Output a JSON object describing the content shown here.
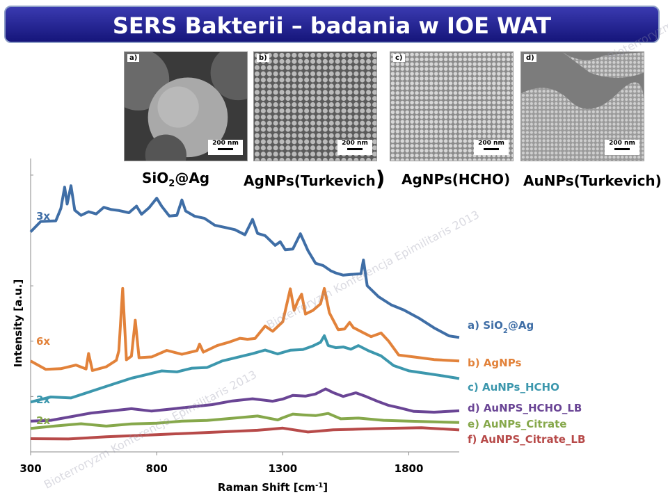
{
  "title": "SERS Bakterii – badania w IOE WAT",
  "watermark": "Bioterroryzm Konferencja Epimilitaris 2013",
  "micrographs": [
    {
      "letter": "a)",
      "scale": "200 nm",
      "label_main": "SiO",
      "label_sub": "2",
      "label_rest": "@Ag"
    },
    {
      "letter": "b)",
      "scale": "200 nm",
      "label_main": "AgNPs(Turkevich",
      "label_sub": "",
      "label_rest": ")"
    },
    {
      "letter": "c)",
      "scale": "200 nm",
      "label_main": "AgNPs(HCHO)",
      "label_sub": "",
      "label_rest": ""
    },
    {
      "letter": "d)",
      "scale": "200 nm",
      "label_main": "AuNPs(Turkevich)",
      "label_sub": "",
      "label_rest": ""
    }
  ],
  "chart_data": {
    "type": "line",
    "xlabel": "Raman Shift [cm",
    "xlabel_sup": "-1",
    "xlabel_end": "]",
    "ylabel": "Intensity [a.u.]",
    "xlim": [
      300,
      2000
    ],
    "ylim": [
      0,
      10
    ],
    "xticks": [
      300,
      800,
      1300,
      1800
    ],
    "xtick_labels": [
      "300",
      "800",
      "1300",
      "1800"
    ],
    "series": [
      {
        "name": "a) SiO",
        "name_sub": "2",
        "name_rest": "@Ag",
        "color": "#3f6ea6",
        "multiplier": "3x",
        "multiplier_color": "#3f6ea6",
        "points": [
          [
            300,
            7.5
          ],
          [
            340,
            7.9
          ],
          [
            400,
            7.9
          ],
          [
            420,
            8.3
          ],
          [
            435,
            9.0
          ],
          [
            445,
            8.4
          ],
          [
            460,
            9.0
          ],
          [
            475,
            8.3
          ],
          [
            500,
            8.1
          ],
          [
            530,
            8.2
          ],
          [
            560,
            8.1
          ],
          [
            590,
            8.3
          ],
          [
            620,
            8.2
          ],
          [
            650,
            8.3
          ],
          [
            690,
            8.2
          ],
          [
            720,
            8.4
          ],
          [
            740,
            8.1
          ],
          [
            770,
            8.3
          ],
          [
            800,
            8.6
          ],
          [
            820,
            8.3
          ],
          [
            850,
            8.1
          ],
          [
            880,
            8.1
          ],
          [
            900,
            8.6
          ],
          [
            915,
            8.2
          ],
          [
            950,
            8.0
          ],
          [
            990,
            7.9
          ],
          [
            1030,
            7.8
          ],
          [
            1070,
            7.7
          ],
          [
            1110,
            7.6
          ],
          [
            1150,
            7.4
          ],
          [
            1180,
            7.9
          ],
          [
            1200,
            7.4
          ],
          [
            1230,
            7.3
          ],
          [
            1270,
            7.1
          ],
          [
            1290,
            7.2
          ],
          [
            1310,
            6.9
          ],
          [
            1340,
            6.9
          ],
          [
            1370,
            7.4
          ],
          [
            1400,
            6.8
          ],
          [
            1430,
            6.5
          ],
          [
            1460,
            6.4
          ],
          [
            1490,
            6.2
          ],
          [
            1510,
            6.1
          ],
          [
            1540,
            6.0
          ],
          [
            1570,
            6.0
          ],
          [
            1610,
            6.0
          ],
          [
            1620,
            6.6
          ],
          [
            1635,
            5.7
          ],
          [
            1680,
            5.3
          ],
          [
            1730,
            5.0
          ],
          [
            1780,
            4.8
          ],
          [
            1840,
            4.5
          ],
          [
            1900,
            4.3
          ],
          [
            1960,
            4.0
          ],
          [
            2000,
            3.9
          ]
        ]
      },
      {
        "name": "b) AgNPs",
        "name_sub": "",
        "name_rest": "",
        "color": "#e2823a",
        "multiplier": "6x",
        "multiplier_color": "#e2823a",
        "points": [
          [
            300,
            3.1
          ],
          [
            360,
            2.8
          ],
          [
            420,
            2.8
          ],
          [
            480,
            2.9
          ],
          [
            520,
            2.9
          ],
          [
            530,
            3.4
          ],
          [
            545,
            2.8
          ],
          [
            600,
            2.9
          ],
          [
            640,
            3.1
          ],
          [
            650,
            3.4
          ],
          [
            665,
            5.5
          ],
          [
            680,
            3.2
          ],
          [
            700,
            3.3
          ],
          [
            715,
            4.5
          ],
          [
            730,
            3.2
          ],
          [
            780,
            3.2
          ],
          [
            840,
            3.4
          ],
          [
            900,
            3.4
          ],
          [
            960,
            3.5
          ],
          [
            970,
            3.7
          ],
          [
            985,
            3.4
          ],
          [
            1040,
            3.6
          ],
          [
            1090,
            3.7
          ],
          [
            1130,
            3.8
          ],
          [
            1160,
            3.9
          ],
          [
            1190,
            3.9
          ],
          [
            1230,
            4.3
          ],
          [
            1260,
            4.1
          ],
          [
            1300,
            4.4
          ],
          [
            1330,
            5.5
          ],
          [
            1345,
            4.9
          ],
          [
            1360,
            5.2
          ],
          [
            1375,
            5.4
          ],
          [
            1390,
            4.7
          ],
          [
            1420,
            4.8
          ],
          [
            1450,
            5.0
          ],
          [
            1465,
            5.5
          ],
          [
            1485,
            4.8
          ],
          [
            1520,
            4.2
          ],
          [
            1545,
            4.2
          ],
          [
            1565,
            4.4
          ],
          [
            1580,
            4.2
          ],
          [
            1620,
            4.0
          ],
          [
            1650,
            4.0
          ],
          [
            1690,
            4.1
          ],
          [
            1720,
            3.8
          ],
          [
            1760,
            3.3
          ],
          [
            1830,
            3.2
          ],
          [
            1900,
            3.1
          ],
          [
            2000,
            3.1
          ]
        ]
      },
      {
        "name": "c) AuNPs_HCHO",
        "name_sub": "",
        "name_rest": "",
        "color": "#3c97ad",
        "multiplier": "2x",
        "multiplier_color": "#3c97ad",
        "points": [
          [
            300,
            1.7
          ],
          [
            380,
            1.8
          ],
          [
            460,
            1.9
          ],
          [
            540,
            2.1
          ],
          [
            620,
            2.3
          ],
          [
            700,
            2.5
          ],
          [
            760,
            2.6
          ],
          [
            820,
            2.7
          ],
          [
            880,
            2.8
          ],
          [
            940,
            2.9
          ],
          [
            1000,
            2.9
          ],
          [
            1060,
            3.1
          ],
          [
            1120,
            3.2
          ],
          [
            1180,
            3.3
          ],
          [
            1230,
            3.4
          ],
          [
            1280,
            3.4
          ],
          [
            1330,
            3.5
          ],
          [
            1380,
            3.5
          ],
          [
            1420,
            3.6
          ],
          [
            1450,
            3.7
          ],
          [
            1465,
            3.9
          ],
          [
            1480,
            3.7
          ],
          [
            1510,
            3.6
          ],
          [
            1540,
            3.6
          ],
          [
            1570,
            3.5
          ],
          [
            1600,
            3.6
          ],
          [
            1640,
            3.4
          ],
          [
            1690,
            3.2
          ],
          [
            1740,
            3.0
          ],
          [
            1800,
            2.8
          ],
          [
            1860,
            2.7
          ],
          [
            1920,
            2.6
          ],
          [
            2000,
            2.5
          ]
        ]
      },
      {
        "name": "d) AuNPS_HCHO_LB",
        "name_sub": "",
        "name_rest": "",
        "color": "#6a4595",
        "multiplier": "",
        "multiplier_color": "",
        "points": [
          [
            300,
            1.05
          ],
          [
            380,
            1.1
          ],
          [
            460,
            1.2
          ],
          [
            540,
            1.3
          ],
          [
            620,
            1.35
          ],
          [
            700,
            1.4
          ],
          [
            780,
            1.45
          ],
          [
            860,
            1.5
          ],
          [
            940,
            1.55
          ],
          [
            1020,
            1.6
          ],
          [
            1100,
            1.7
          ],
          [
            1180,
            1.75
          ],
          [
            1260,
            1.8
          ],
          [
            1300,
            1.85
          ],
          [
            1340,
            1.95
          ],
          [
            1390,
            1.9
          ],
          [
            1430,
            1.95
          ],
          [
            1470,
            2.1
          ],
          [
            1500,
            1.95
          ],
          [
            1540,
            1.95
          ],
          [
            1590,
            2.05
          ],
          [
            1630,
            1.9
          ],
          [
            1680,
            1.7
          ],
          [
            1720,
            1.55
          ],
          [
            1760,
            1.45
          ],
          [
            1820,
            1.45
          ],
          [
            1900,
            1.4
          ],
          [
            2000,
            1.4
          ]
        ]
      },
      {
        "name": "e) AuNPs_Citrate",
        "name_sub": "",
        "name_rest": "",
        "color": "#86a84b",
        "multiplier": "2x",
        "multiplier_color": "#86a84b",
        "points": [
          [
            300,
            0.8
          ],
          [
            400,
            0.85
          ],
          [
            500,
            0.9
          ],
          [
            600,
            0.95
          ],
          [
            700,
            1.0
          ],
          [
            800,
            1.0
          ],
          [
            900,
            1.05
          ],
          [
            1000,
            1.05
          ],
          [
            1100,
            1.1
          ],
          [
            1200,
            1.15
          ],
          [
            1280,
            1.15
          ],
          [
            1300,
            1.2
          ],
          [
            1340,
            1.3
          ],
          [
            1380,
            1.25
          ],
          [
            1430,
            1.2
          ],
          [
            1480,
            1.25
          ],
          [
            1530,
            1.2
          ],
          [
            1600,
            1.2
          ],
          [
            1700,
            1.1
          ],
          [
            1800,
            1.05
          ],
          [
            1900,
            1.0
          ],
          [
            2000,
            1.0
          ]
        ]
      },
      {
        "name": "f) AuNPS_Citrate_LB",
        "name_sub": "",
        "name_rest": "",
        "color": "#b74a49",
        "multiplier": "",
        "multiplier_color": "",
        "points": [
          [
            300,
            0.45
          ],
          [
            450,
            0.5
          ],
          [
            600,
            0.55
          ],
          [
            800,
            0.6
          ],
          [
            1000,
            0.65
          ],
          [
            1200,
            0.7
          ],
          [
            1300,
            0.75
          ],
          [
            1400,
            0.75
          ],
          [
            1500,
            0.8
          ],
          [
            1600,
            0.8
          ],
          [
            1700,
            0.8
          ],
          [
            1850,
            0.8
          ],
          [
            2000,
            0.75
          ]
        ]
      }
    ]
  }
}
